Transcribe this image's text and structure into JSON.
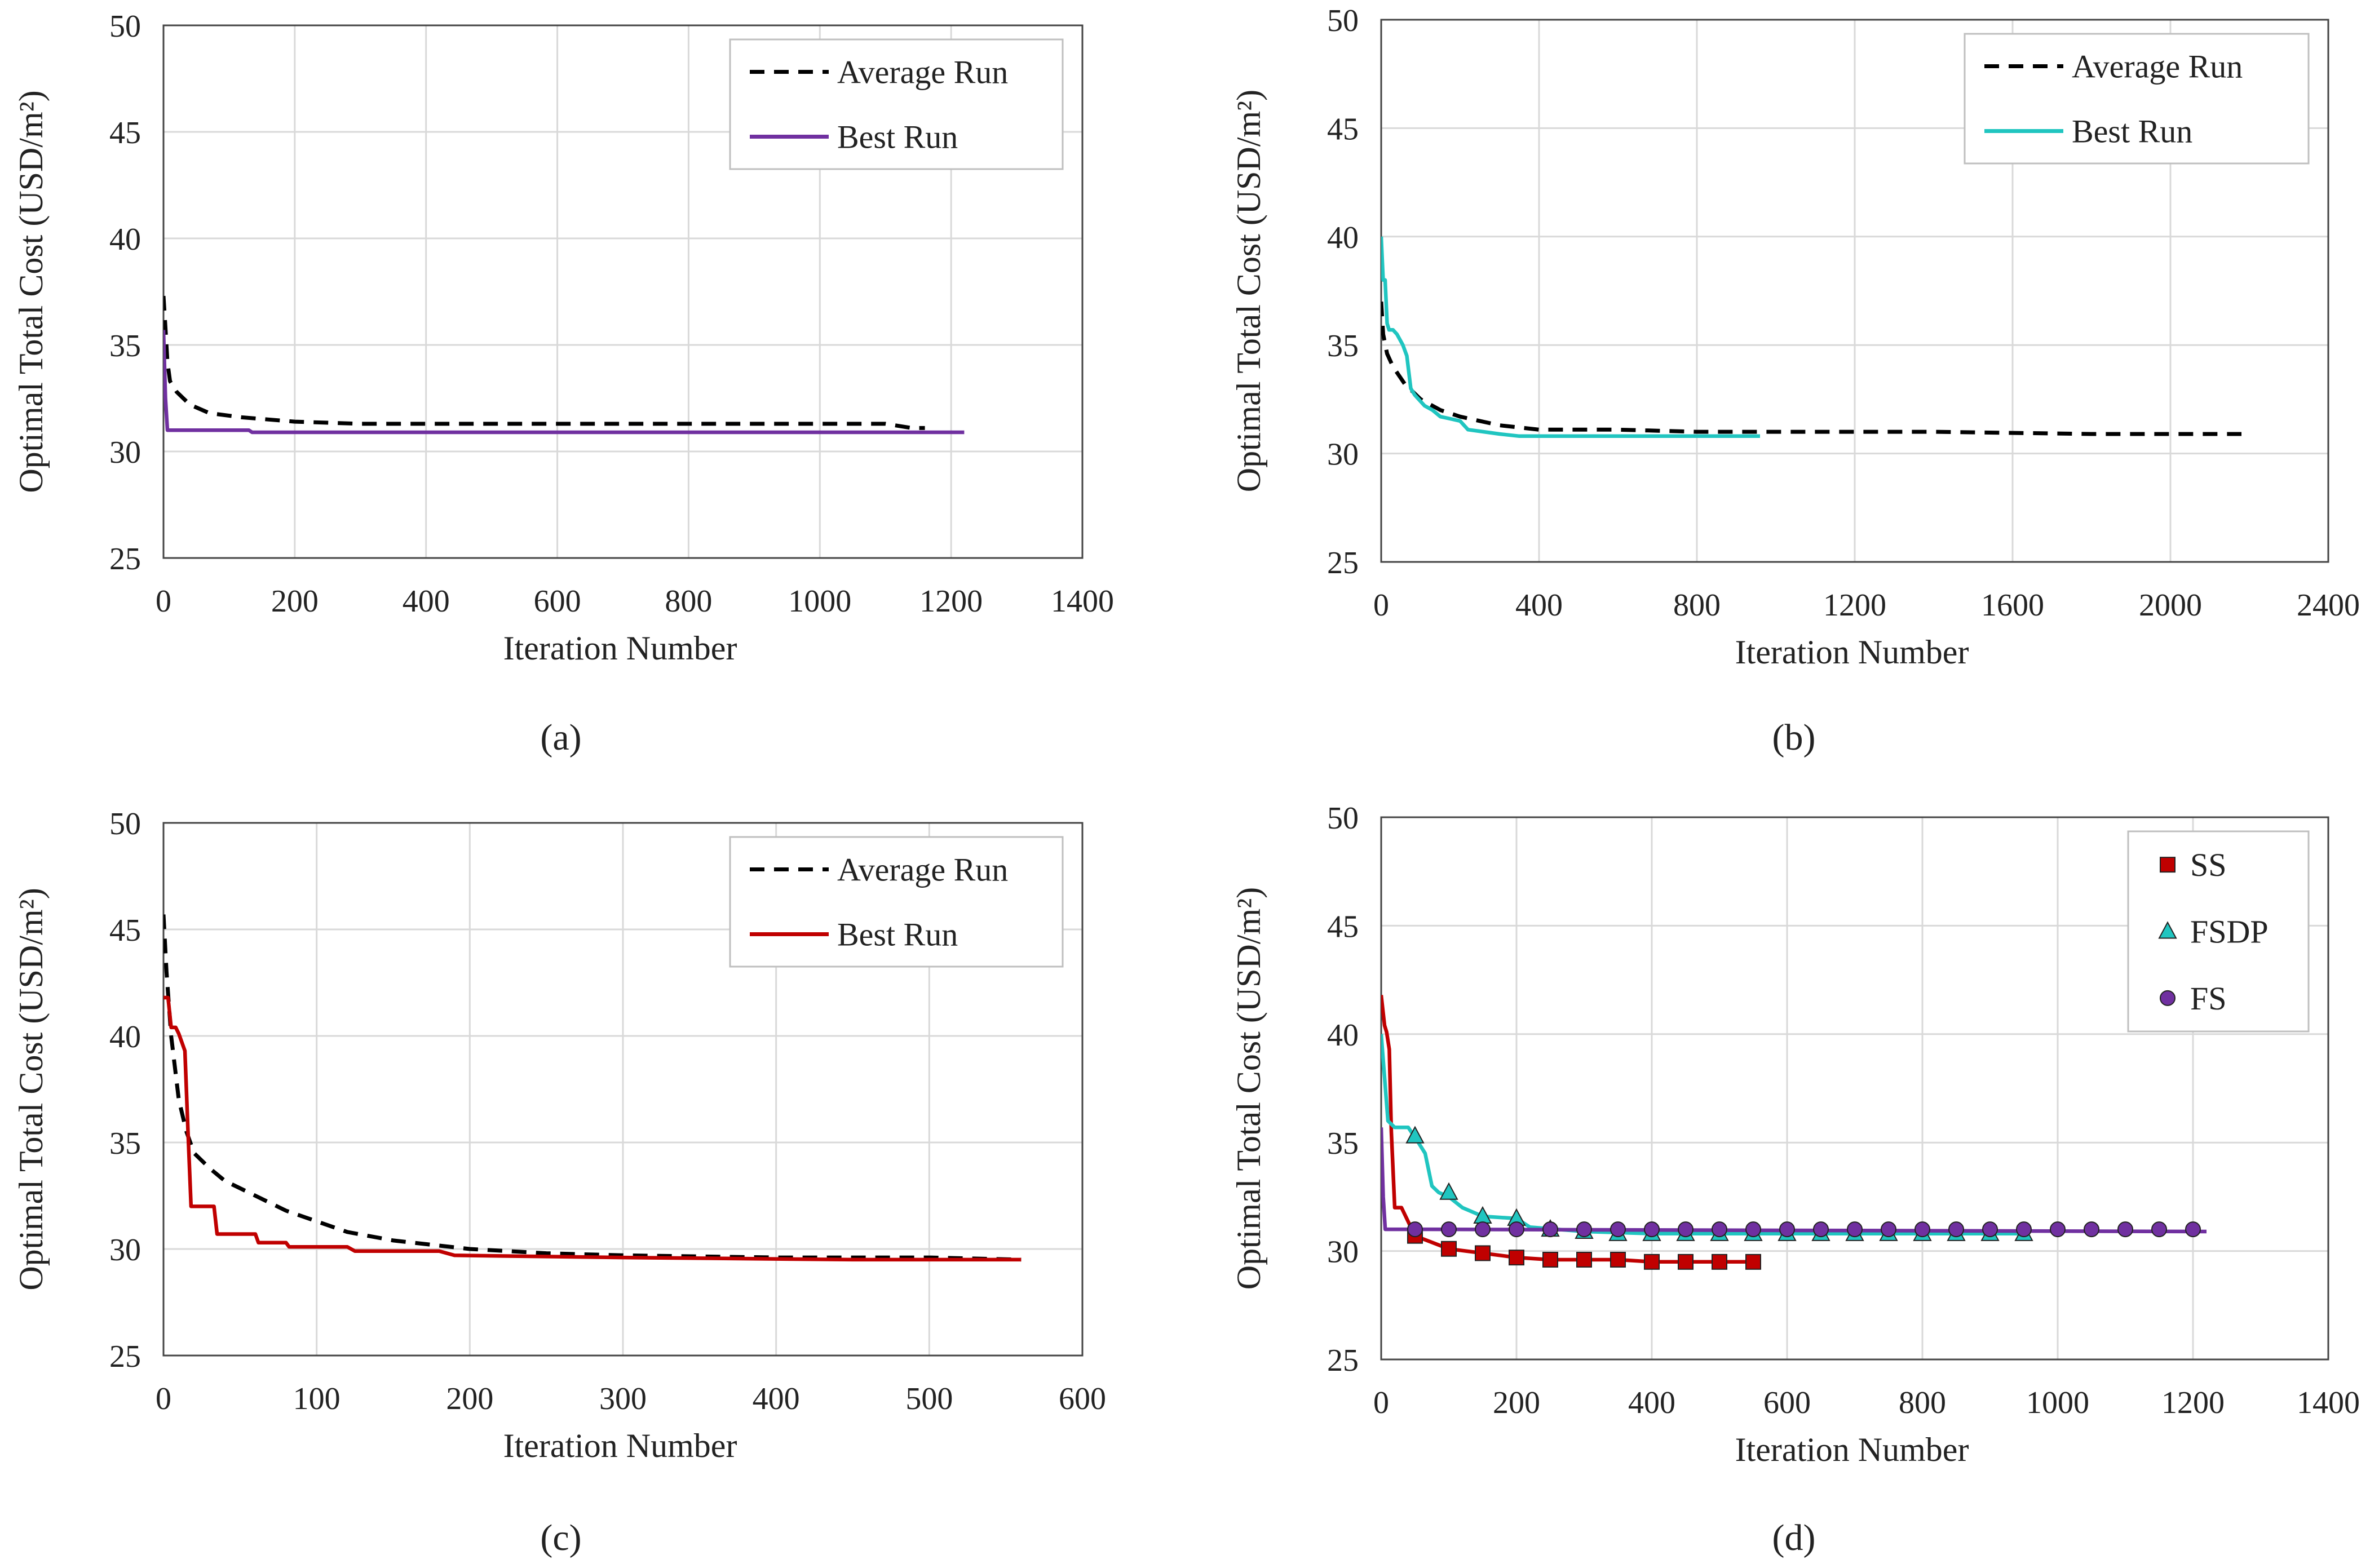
{
  "chart_data": [
    {
      "id": "a",
      "caption": "(a)",
      "type": "line",
      "ylabel": "Optimal Total Cost (USD/m²)",
      "xlabel": "Iteration Number",
      "xlim": [
        0,
        1400
      ],
      "ylim": [
        25,
        50
      ],
      "xticks": [
        0,
        200,
        400,
        600,
        800,
        1000,
        1200,
        1400
      ],
      "yticks": [
        25,
        30,
        35,
        40,
        45,
        50
      ],
      "grid": true,
      "legend": "top-right",
      "series": [
        {
          "name": "Average Run",
          "style": "dashed",
          "color": "#000000",
          "marker": null,
          "x": [
            0,
            3,
            6,
            10,
            20,
            40,
            70,
            120,
            200,
            300,
            500,
            700,
            900,
            1000,
            1060,
            1100,
            1140,
            1160
          ],
          "y": [
            37.3,
            35.8,
            34.2,
            33.3,
            32.8,
            32.2,
            31.8,
            31.6,
            31.4,
            31.3,
            31.3,
            31.3,
            31.3,
            31.3,
            31.3,
            31.3,
            31.1,
            31.1
          ]
        },
        {
          "name": "Best Run",
          "style": "solid",
          "color": "#7030a0",
          "marker": null,
          "x": [
            0,
            3,
            6,
            130,
            135,
            1220
          ],
          "y": [
            35.7,
            32.5,
            31.0,
            31.0,
            30.9,
            30.9
          ]
        }
      ]
    },
    {
      "id": "b",
      "caption": "(b)",
      "type": "line",
      "ylabel": "Optimal Total Cost (USD/m²)",
      "xlabel": "Iteration Number",
      "xlim": [
        0,
        2400
      ],
      "ylim": [
        25,
        50
      ],
      "xticks": [
        0,
        400,
        800,
        1200,
        1600,
        2000,
        2400
      ],
      "yticks": [
        25,
        30,
        35,
        40,
        45,
        50
      ],
      "grid": true,
      "legend": "top-right",
      "series": [
        {
          "name": "Average Run",
          "style": "dashed",
          "color": "#000000",
          "marker": null,
          "x": [
            0,
            5,
            15,
            30,
            60,
            100,
            150,
            200,
            300,
            400,
            600,
            800,
            1000,
            1400,
            1800,
            2000,
            2180
          ],
          "y": [
            37.0,
            35.5,
            34.6,
            34.0,
            33.2,
            32.5,
            32.0,
            31.7,
            31.3,
            31.1,
            31.1,
            31.0,
            31.0,
            31.0,
            30.9,
            30.9,
            30.9
          ]
        },
        {
          "name": "Best Run",
          "style": "solid",
          "color": "#20c5c0",
          "marker": null,
          "x": [
            0,
            5,
            10,
            15,
            20,
            30,
            40,
            55,
            65,
            75,
            85,
            95,
            110,
            130,
            150,
            175,
            200,
            220,
            260,
            300,
            350,
            500,
            700,
            960
          ],
          "y": [
            40.0,
            38.0,
            38.0,
            36.0,
            35.7,
            35.7,
            35.5,
            35.0,
            34.5,
            33.0,
            32.7,
            32.5,
            32.2,
            32.0,
            31.7,
            31.6,
            31.5,
            31.1,
            31.0,
            30.9,
            30.8,
            30.8,
            30.8,
            30.8
          ]
        }
      ]
    },
    {
      "id": "c",
      "caption": "(c)",
      "type": "line",
      "ylabel": "Optimal Total Cost (USD/m²)",
      "xlabel": "Iteration Number",
      "xlim": [
        0,
        600
      ],
      "ylim": [
        25,
        50
      ],
      "xticks": [
        0,
        100,
        200,
        300,
        400,
        500,
        600
      ],
      "yticks": [
        25,
        30,
        35,
        40,
        45,
        50
      ],
      "grid": true,
      "legend": "top-right",
      "series": [
        {
          "name": "Average Run",
          "style": "dashed",
          "color": "#000000",
          "marker": null,
          "x": [
            0,
            2,
            5,
            10,
            15,
            20,
            30,
            40,
            60,
            80,
            100,
            120,
            150,
            200,
            250,
            300,
            400,
            500,
            560
          ],
          "y": [
            45.7,
            43.0,
            40.0,
            37.0,
            35.5,
            34.5,
            33.8,
            33.2,
            32.5,
            31.8,
            31.3,
            30.8,
            30.4,
            30.0,
            29.8,
            29.7,
            29.6,
            29.6,
            29.5
          ]
        },
        {
          "name": "Best Run",
          "style": "solid",
          "color": "#c00000",
          "marker": null,
          "x": [
            0,
            3,
            5,
            8,
            10,
            14,
            16,
            18,
            33,
            35,
            60,
            62,
            80,
            82,
            120,
            125,
            180,
            190,
            300,
            450,
            560
          ],
          "y": [
            41.8,
            41.8,
            40.4,
            40.4,
            40.1,
            39.3,
            35.5,
            32.0,
            32.0,
            30.7,
            30.7,
            30.3,
            30.3,
            30.1,
            30.1,
            29.9,
            29.9,
            29.7,
            29.6,
            29.5,
            29.5
          ]
        }
      ]
    },
    {
      "id": "d",
      "caption": "(d)",
      "type": "line",
      "ylabel": "Optimal Total Cost (USD/m²)",
      "xlabel": "Iteration Number",
      "xlim": [
        0,
        1400
      ],
      "ylim": [
        25,
        50
      ],
      "xticks": [
        0,
        200,
        400,
        600,
        800,
        1000,
        1200,
        1400
      ],
      "yticks": [
        25,
        30,
        35,
        40,
        45,
        50
      ],
      "grid": true,
      "legend": "top-right",
      "series": [
        {
          "name": "SS",
          "style": "solid",
          "color": "#c00000",
          "marker": "square",
          "x": [
            0,
            5,
            8,
            12,
            15,
            20,
            30,
            50,
            100,
            150,
            200,
            250,
            300,
            350,
            400,
            450,
            500,
            555
          ],
          "y": [
            41.8,
            40.4,
            40.1,
            39.3,
            35.5,
            32.0,
            32.0,
            30.7,
            30.1,
            29.9,
            29.7,
            29.6,
            29.6,
            29.6,
            29.5,
            29.5,
            29.5,
            29.5
          ],
          "marker_x": [
            50,
            100,
            150,
            200,
            250,
            300,
            350,
            400,
            450,
            500,
            550
          ],
          "marker_y": [
            30.7,
            30.1,
            29.9,
            29.7,
            29.6,
            29.6,
            29.6,
            29.5,
            29.5,
            29.5,
            29.5
          ]
        },
        {
          "name": "FSDP",
          "style": "solid",
          "color": "#20c5c0",
          "marker": "triangle",
          "x": [
            0,
            5,
            10,
            20,
            40,
            55,
            65,
            75,
            85,
            100,
            120,
            150,
            200,
            220,
            260,
            300,
            400,
            600,
            800,
            950
          ],
          "y": [
            40.0,
            38.0,
            36.0,
            35.7,
            35.7,
            35.0,
            34.5,
            33.0,
            32.7,
            32.5,
            32.0,
            31.6,
            31.5,
            31.1,
            31.0,
            30.9,
            30.8,
            30.8,
            30.8,
            30.8
          ],
          "marker_x": [
            50,
            100,
            150,
            200,
            250,
            300,
            350,
            400,
            450,
            500,
            550,
            600,
            650,
            700,
            750,
            800,
            850,
            900,
            950
          ],
          "marker_y": [
            35.3,
            32.7,
            31.6,
            31.5,
            31.0,
            30.9,
            30.8,
            30.8,
            30.8,
            30.8,
            30.8,
            30.8,
            30.8,
            30.8,
            30.8,
            30.8,
            30.8,
            30.8,
            30.8
          ]
        },
        {
          "name": "FS",
          "style": "solid",
          "color": "#7030a0",
          "marker": "circle",
          "x": [
            0,
            3,
            6,
            50,
            1220
          ],
          "y": [
            35.7,
            32.5,
            31.0,
            31.0,
            30.9
          ],
          "marker_x": [
            50,
            100,
            150,
            200,
            250,
            300,
            350,
            400,
            450,
            500,
            550,
            600,
            650,
            700,
            750,
            800,
            850,
            900,
            950,
            1000,
            1050,
            1100,
            1150,
            1200
          ],
          "marker_y": [
            31.0,
            31.0,
            31.0,
            31.0,
            31.0,
            31.0,
            31.0,
            31.0,
            31.0,
            31.0,
            31.0,
            31.0,
            31.0,
            31.0,
            31.0,
            31.0,
            31.0,
            31.0,
            31.0,
            31.0,
            31.0,
            31.0,
            31.0,
            31.0
          ]
        }
      ]
    }
  ]
}
